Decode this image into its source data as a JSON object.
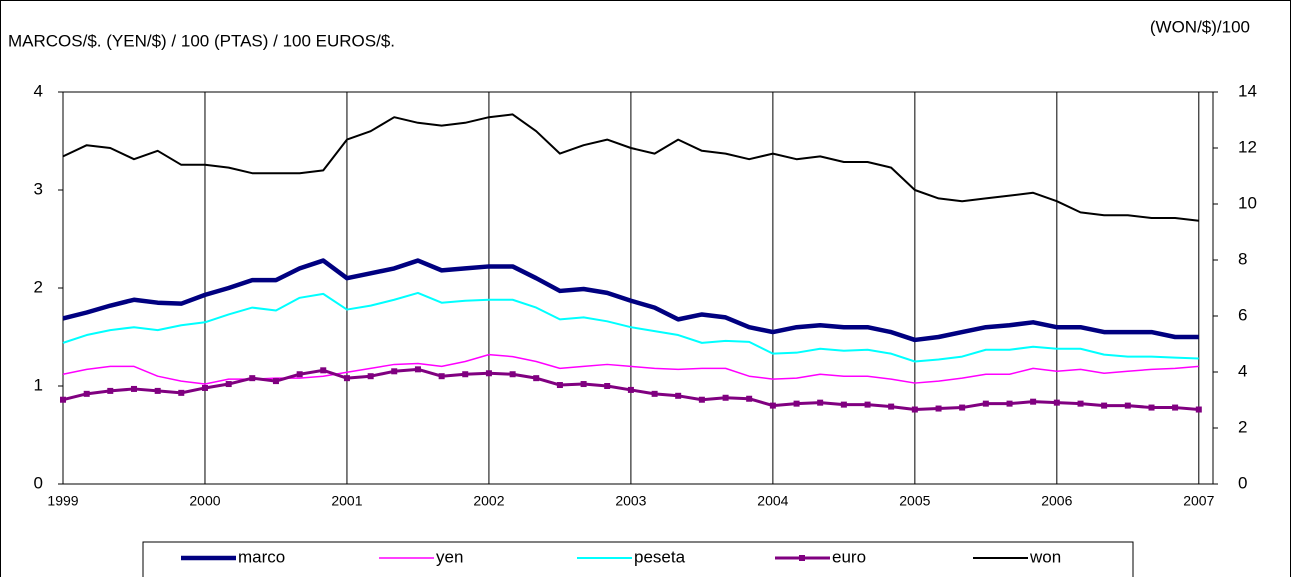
{
  "chart_data": {
    "type": "line",
    "title": "MARCOS/$. (YEN/$) / 100 (PTAS) / 100 EUROS/$.",
    "y2_title": "(WON/$)/100",
    "x": [
      1999,
      1999.167,
      1999.333,
      1999.5,
      1999.667,
      1999.833,
      2000,
      2000.167,
      2000.333,
      2000.5,
      2000.667,
      2000.833,
      2001,
      2001.167,
      2001.333,
      2001.5,
      2001.667,
      2001.833,
      2002,
      2002.167,
      2002.333,
      2002.5,
      2002.667,
      2002.833,
      2003,
      2003.167,
      2003.333,
      2003.5,
      2003.667,
      2003.833,
      2004,
      2004.167,
      2004.333,
      2004.5,
      2004.667,
      2004.833,
      2005,
      2005.167,
      2005.333,
      2005.5,
      2005.667,
      2005.833,
      2006,
      2006.167,
      2006.333,
      2006.5,
      2006.667,
      2006.833,
      2007
    ],
    "xlim": [
      1999,
      2007.1
    ],
    "xticks": [
      1999,
      2000,
      2001,
      2002,
      2003,
      2004,
      2005,
      2006,
      2007
    ],
    "ylim": [
      0,
      4
    ],
    "yticks": [
      0,
      1,
      2,
      3,
      4
    ],
    "y2lim": [
      0,
      14
    ],
    "y2ticks": [
      0,
      2,
      4,
      6,
      8,
      10,
      12,
      14
    ],
    "grid": true,
    "series": [
      {
        "name": "marco",
        "color": "#000080",
        "values": [
          1.69,
          1.75,
          1.82,
          1.88,
          1.85,
          1.84,
          1.93,
          2.0,
          2.08,
          2.08,
          2.2,
          2.28,
          2.1,
          2.15,
          2.2,
          2.28,
          2.18,
          2.2,
          2.22,
          2.22,
          2.1,
          1.97,
          1.99,
          1.95,
          1.87,
          1.8,
          1.68,
          1.73,
          1.7,
          1.6,
          1.55,
          1.6,
          1.62,
          1.6,
          1.6,
          1.55,
          1.47,
          1.5,
          1.55,
          1.6,
          1.62,
          1.65,
          1.6,
          1.6,
          1.55,
          1.55,
          1.55,
          1.5,
          1.5
        ]
      },
      {
        "name": "yen",
        "color": "#ff00ff",
        "values": [
          1.12,
          1.17,
          1.2,
          1.2,
          1.1,
          1.05,
          1.02,
          1.07,
          1.07,
          1.08,
          1.08,
          1.1,
          1.14,
          1.18,
          1.22,
          1.23,
          1.2,
          1.25,
          1.32,
          1.3,
          1.25,
          1.18,
          1.2,
          1.22,
          1.2,
          1.18,
          1.17,
          1.18,
          1.18,
          1.1,
          1.07,
          1.08,
          1.12,
          1.1,
          1.1,
          1.07,
          1.03,
          1.05,
          1.08,
          1.12,
          1.12,
          1.18,
          1.15,
          1.17,
          1.13,
          1.15,
          1.17,
          1.18,
          1.2
        ]
      },
      {
        "name": "peseta",
        "color": "#00ffff",
        "values": [
          1.44,
          1.52,
          1.57,
          1.6,
          1.57,
          1.62,
          1.65,
          1.73,
          1.8,
          1.77,
          1.9,
          1.94,
          1.78,
          1.82,
          1.88,
          1.95,
          1.85,
          1.87,
          1.88,
          1.88,
          1.8,
          1.68,
          1.7,
          1.66,
          1.6,
          1.56,
          1.52,
          1.44,
          1.46,
          1.45,
          1.33,
          1.34,
          1.38,
          1.36,
          1.37,
          1.33,
          1.25,
          1.27,
          1.3,
          1.37,
          1.37,
          1.4,
          1.38,
          1.38,
          1.32,
          1.3,
          1.3,
          1.29,
          1.28
        ]
      },
      {
        "name": "euro",
        "color": "#800080",
        "marker": "square",
        "values": [
          0.86,
          0.92,
          0.95,
          0.97,
          0.95,
          0.93,
          0.98,
          1.02,
          1.08,
          1.05,
          1.12,
          1.16,
          1.08,
          1.1,
          1.15,
          1.17,
          1.1,
          1.12,
          1.13,
          1.12,
          1.08,
          1.01,
          1.02,
          1.0,
          0.96,
          0.92,
          0.9,
          0.86,
          0.88,
          0.87,
          0.8,
          0.82,
          0.83,
          0.81,
          0.81,
          0.79,
          0.76,
          0.77,
          0.78,
          0.82,
          0.82,
          0.84,
          0.83,
          0.82,
          0.8,
          0.8,
          0.78,
          0.78,
          0.76
        ]
      },
      {
        "name": "won",
        "color": "#000000",
        "axis": "y2",
        "values": [
          11.7,
          12.1,
          12.0,
          11.6,
          11.9,
          11.4,
          11.4,
          11.3,
          11.1,
          11.1,
          11.1,
          11.2,
          12.3,
          12.6,
          13.1,
          12.9,
          12.8,
          12.9,
          13.1,
          13.2,
          12.6,
          11.8,
          12.1,
          12.3,
          12.0,
          11.8,
          12.3,
          11.9,
          11.8,
          11.6,
          11.8,
          11.6,
          11.7,
          11.5,
          11.5,
          11.3,
          10.5,
          10.2,
          10.1,
          10.2,
          10.3,
          10.4,
          10.1,
          9.7,
          9.6,
          9.6,
          9.5,
          9.5,
          9.4
        ]
      }
    ],
    "legend": "bottom"
  }
}
